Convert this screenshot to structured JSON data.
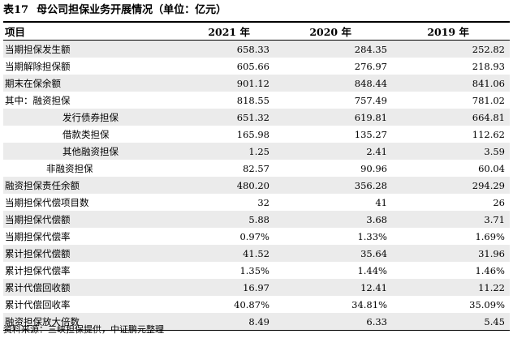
{
  "title": {
    "number": "表17",
    "text": "母公司担保业务开展情况（单位：亿元）"
  },
  "table": {
    "headers": [
      "项目",
      "2021 年",
      "2020 年",
      "2019 年"
    ],
    "rows": [
      {
        "label": "当期担保发生额",
        "indent": 0,
        "values": [
          "658.33",
          "284.35",
          "252.82"
        ]
      },
      {
        "label": "当期解除担保额",
        "indent": 0,
        "values": [
          "605.66",
          "276.97",
          "218.93"
        ]
      },
      {
        "label": "期末在保余额",
        "indent": 0,
        "values": [
          "901.12",
          "848.44",
          "841.06"
        ]
      },
      {
        "label": "其中：融资担保",
        "indent": 0,
        "values": [
          "818.55",
          "757.49",
          "781.02"
        ]
      },
      {
        "label": "发行债券担保",
        "indent": 2,
        "values": [
          "651.32",
          "619.81",
          "664.81"
        ]
      },
      {
        "label": "借款类担保",
        "indent": 2,
        "values": [
          "165.98",
          "135.27",
          "112.62"
        ]
      },
      {
        "label": "其他融资担保",
        "indent": 2,
        "values": [
          "1.25",
          "2.41",
          "3.59"
        ]
      },
      {
        "label": "非融资担保",
        "indent": 1,
        "values": [
          "82.57",
          "90.96",
          "60.04"
        ]
      },
      {
        "label": "融资担保责任余额",
        "indent": 0,
        "values": [
          "480.20",
          "356.28",
          "294.29"
        ]
      },
      {
        "label": "当期担保代偿项目数",
        "indent": 0,
        "values": [
          "32",
          "41",
          "26"
        ]
      },
      {
        "label": "当期担保代偿额",
        "indent": 0,
        "values": [
          "5.88",
          "3.68",
          "3.71"
        ]
      },
      {
        "label": "当期担保代偿率",
        "indent": 0,
        "values": [
          "0.97%",
          "1.33%",
          "1.69%"
        ]
      },
      {
        "label": "累计担保代偿额",
        "indent": 0,
        "values": [
          "41.52",
          "35.64",
          "31.96"
        ]
      },
      {
        "label": "累计担保代偿率",
        "indent": 0,
        "values": [
          "1.35%",
          "1.44%",
          "1.46%"
        ]
      },
      {
        "label": "累计代偿回收额",
        "indent": 0,
        "values": [
          "16.97",
          "12.41",
          "11.22"
        ]
      },
      {
        "label": "累计代偿回收率",
        "indent": 0,
        "values": [
          "40.87%",
          "34.81%",
          "35.09%"
        ]
      },
      {
        "label": "融资担保放大倍数",
        "indent": 0,
        "values": [
          "8.49",
          "6.33",
          "5.45"
        ]
      }
    ]
  },
  "source": "资料来源：三峡担保提供，中证鹏元整理"
}
